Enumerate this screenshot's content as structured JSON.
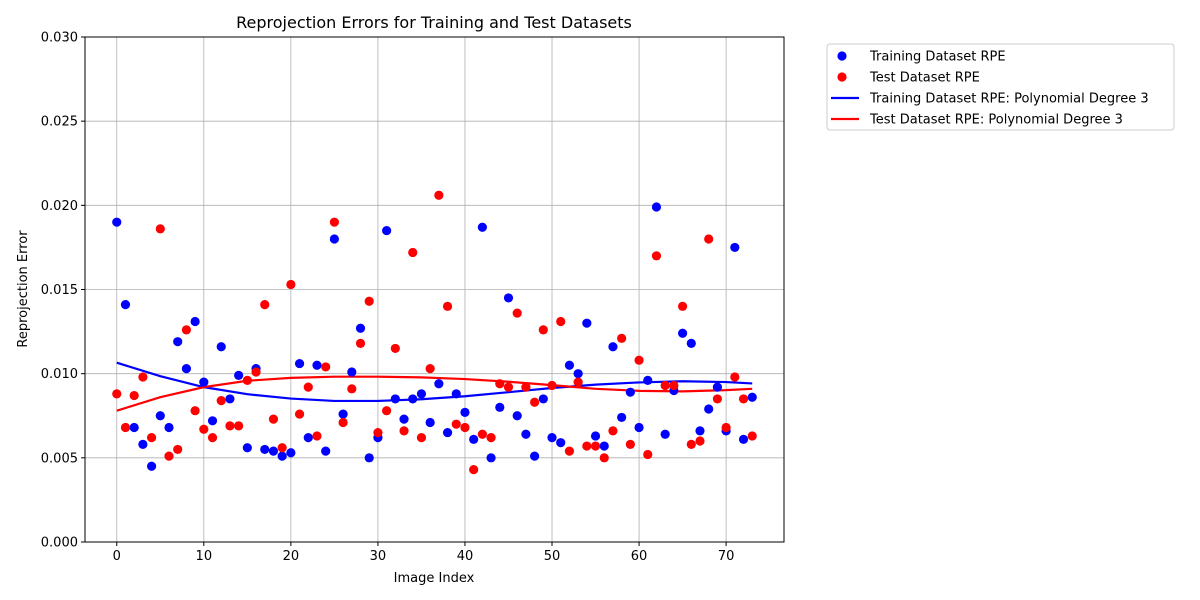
{
  "chart_data": {
    "type": "scatter",
    "title": "Reprojection Errors for Training and Test Datasets",
    "xlabel": "Image Index",
    "ylabel": "Reprojection Error",
    "xlim": [
      -3.65,
      76.65
    ],
    "ylim": [
      0.0,
      0.03
    ],
    "xticks": [
      0,
      10,
      20,
      30,
      40,
      50,
      60,
      70
    ],
    "yticks": [
      0.0,
      0.005,
      0.01,
      0.015,
      0.02,
      0.025,
      0.03
    ],
    "ytick_labels": [
      "0.000",
      "0.005",
      "0.010",
      "0.015",
      "0.020",
      "0.025",
      "0.030"
    ],
    "grid": true,
    "legend_position": "outside-top-right",
    "series": [
      {
        "name": "Training Dataset RPE",
        "kind": "scatter",
        "color": "#0000ff",
        "x": [
          0,
          1,
          2,
          3,
          4,
          5,
          6,
          7,
          8,
          9,
          10,
          11,
          12,
          13,
          14,
          15,
          16,
          17,
          18,
          19,
          20,
          21,
          22,
          23,
          24,
          25,
          26,
          27,
          28,
          29,
          30,
          31,
          32,
          33,
          34,
          35,
          36,
          37,
          38,
          39,
          40,
          41,
          42,
          43,
          44,
          45,
          46,
          47,
          48,
          49,
          50,
          51,
          52,
          53,
          54,
          55,
          56,
          57,
          58,
          59,
          60,
          61,
          62,
          63,
          64,
          65,
          66,
          67,
          68,
          69,
          70,
          71,
          72,
          73
        ],
        "y": [
          0.019,
          0.0141,
          0.0068,
          0.0058,
          0.0045,
          0.0075,
          0.0068,
          0.0119,
          0.0103,
          0.0131,
          0.0095,
          0.0072,
          0.0116,
          0.0085,
          0.0099,
          0.0056,
          0.0103,
          0.0055,
          0.0054,
          0.0051,
          0.0053,
          0.0106,
          0.0062,
          0.0105,
          0.0054,
          0.018,
          0.0076,
          0.0101,
          0.0127,
          0.005,
          0.0062,
          0.0185,
          0.0085,
          0.0073,
          0.0085,
          0.0088,
          0.0071,
          0.0094,
          0.0065,
          0.0088,
          0.0077,
          0.0061,
          0.0187,
          0.005,
          0.008,
          0.0145,
          0.0075,
          0.0064,
          0.0051,
          0.0085,
          0.0062,
          0.0059,
          0.0105,
          0.01,
          0.013,
          0.0063,
          0.0057,
          0.0116,
          0.0074,
          0.0089,
          0.0068,
          0.0096,
          0.0199,
          0.0064,
          0.009,
          0.0124,
          0.0118,
          0.0066,
          0.0079,
          0.0092,
          0.0066,
          0.0175,
          0.0061,
          0.0086
        ]
      },
      {
        "name": "Test Dataset RPE",
        "kind": "scatter",
        "color": "#ff0000",
        "x": [
          0,
          1,
          2,
          3,
          4,
          5,
          6,
          7,
          8,
          9,
          10,
          11,
          12,
          13,
          14,
          15,
          16,
          17,
          18,
          19,
          20,
          21,
          22,
          23,
          24,
          25,
          26,
          27,
          28,
          29,
          30,
          31,
          32,
          33,
          34,
          35,
          36,
          37,
          38,
          39,
          40,
          41,
          42,
          43,
          44,
          45,
          46,
          47,
          48,
          49,
          50,
          51,
          52,
          53,
          54,
          55,
          56,
          57,
          58,
          59,
          60,
          61,
          62,
          63,
          64,
          65,
          66,
          67,
          68,
          69,
          70,
          71,
          72,
          73
        ],
        "y": [
          0.0088,
          0.0068,
          0.0087,
          0.0098,
          0.0062,
          0.0186,
          0.0051,
          0.0055,
          0.0126,
          0.0078,
          0.0067,
          0.0062,
          0.0084,
          0.0069,
          0.0069,
          0.0096,
          0.0101,
          0.0141,
          0.0073,
          0.0056,
          0.0153,
          0.0076,
          0.0092,
          0.0063,
          0.0104,
          0.019,
          0.0071,
          0.0091,
          0.0118,
          0.0143,
          0.0065,
          0.0078,
          0.0115,
          0.0066,
          0.0172,
          0.0062,
          0.0103,
          0.0206,
          0.014,
          0.007,
          0.0068,
          0.0043,
          0.0064,
          0.0062,
          0.0094,
          0.0092,
          0.0136,
          0.0092,
          0.0083,
          0.0126,
          0.0093,
          0.0131,
          0.0054,
          0.0095,
          0.0057,
          0.0057,
          0.005,
          0.0066,
          0.0121,
          0.0058,
          0.0108,
          0.0052,
          0.017,
          0.0093,
          0.0093,
          0.014,
          0.0058,
          0.006,
          0.018,
          0.0085,
          0.0068,
          0.0098,
          0.0085,
          0.0063
        ]
      },
      {
        "name": "Training Dataset RPE: Polynomial Degree 3",
        "kind": "line",
        "color": "#0000ff",
        "x": [
          0,
          5,
          10,
          15,
          20,
          25,
          30,
          35,
          40,
          45,
          50,
          55,
          60,
          65,
          70,
          73
        ],
        "y": [
          0.01065,
          0.00985,
          0.0092,
          0.00878,
          0.00852,
          0.00838,
          0.00838,
          0.00848,
          0.00866,
          0.0089,
          0.00915,
          0.00935,
          0.00948,
          0.00955,
          0.0095,
          0.00942
        ]
      },
      {
        "name": "Test Dataset RPE: Polynomial Degree 3",
        "kind": "line",
        "color": "#ff0000",
        "x": [
          0,
          5,
          10,
          15,
          20,
          25,
          30,
          35,
          40,
          45,
          50,
          55,
          60,
          65,
          70,
          73
        ],
        "y": [
          0.0078,
          0.0086,
          0.0092,
          0.00958,
          0.00975,
          0.00982,
          0.00982,
          0.00978,
          0.00968,
          0.00952,
          0.00932,
          0.0091,
          0.00898,
          0.00895,
          0.00902,
          0.0091
        ]
      }
    ]
  }
}
